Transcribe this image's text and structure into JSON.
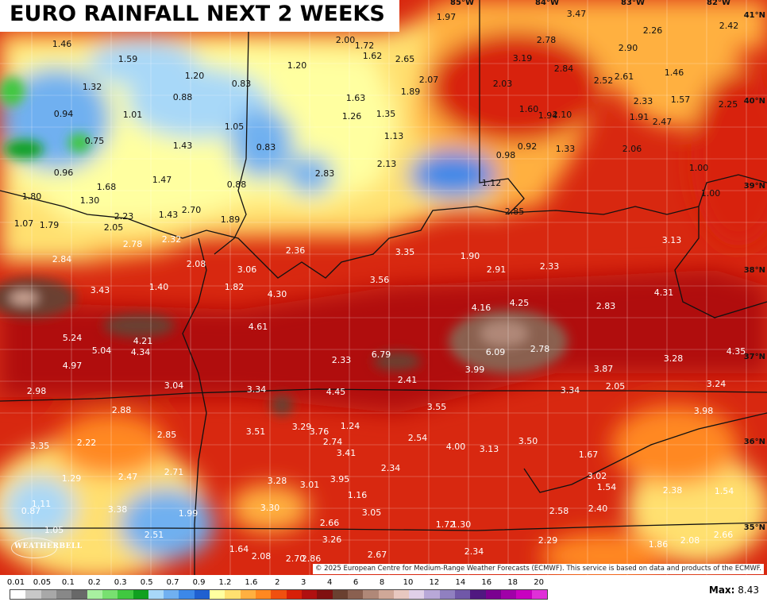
{
  "title": "EURO RAINFALL NEXT 2 WEEKS",
  "credit": "© 2025 European Centre for Medium-Range Weather Forecasts (ECMWF). This service is based on data and products of the ECMWF.",
  "logo_text": "WEATHERBELL",
  "max_label": "Max:",
  "max_value": "8.43",
  "lat_labels": [
    "41°N",
    "40°N",
    "39°N",
    "38°N",
    "37°N",
    "36°N",
    "35°N"
  ],
  "lon_labels": [
    "85°W",
    "84°W",
    "83°W",
    "82°W"
  ],
  "legend": {
    "labels": [
      "0.01",
      "0.05",
      "0.1",
      "0.2",
      "0.3",
      "0.5",
      "0.7",
      "0.9",
      "1.2",
      "1.6",
      "2",
      "3",
      "4",
      "6",
      "8",
      "10",
      "12",
      "14",
      "16",
      "18",
      "20"
    ],
    "colors": [
      "#ffffff",
      "#c8c8c8",
      "#a8a8a8",
      "#888888",
      "#686868",
      "#a8f0a0",
      "#78e070",
      "#40c840",
      "#10a020",
      "#a8d8f8",
      "#70b0f0",
      "#3c88e8",
      "#2060d0",
      "#ffffa0",
      "#ffe070",
      "#ffb040",
      "#ff8820",
      "#f05010",
      "#d82008",
      "#b01010",
      "#801010",
      "#6a4030",
      "#8a6050",
      "#b08878",
      "#d0a898",
      "#e8c8c0",
      "#e0d0e8",
      "#b8a8d8",
      "#9080c0",
      "#7058a8",
      "#501880",
      "#7a0090",
      "#a000a8",
      "#c800c0",
      "#e030d8"
    ]
  },
  "rain_values": [
    "1.97",
    "3.47",
    "2.26",
    "2.42",
    "1.46",
    "2.00",
    "1.72",
    "1.62",
    "2.65",
    "2.78",
    "2.90",
    "1.59",
    "1.20",
    "3.19",
    "2.84",
    "1.32",
    "1.20",
    "0.83",
    "2.07",
    "2.03",
    "2.52",
    "2.61",
    "1.46",
    "0.88",
    "1.89",
    "1.63",
    "2.33",
    "1.57",
    "2.25",
    "0.94",
    "1.01",
    "1.26",
    "1.35",
    "1.60",
    "1.94",
    "2.10",
    "1.91",
    "2.47",
    "0.75",
    "1.05",
    "1.13",
    "1.43",
    "0.83",
    "0.92",
    "1.33",
    "2.06",
    "0.98",
    "0.96",
    "1.47",
    "2.83",
    "2.13",
    "1.00",
    "1.68",
    "0.88",
    "1.12",
    "1.80",
    "1.30",
    "2.85",
    "1.00",
    "1.07",
    "1.79",
    "2.23",
    "1.43",
    "2.70",
    "1.89",
    "2.05",
    "2.78",
    "2.32",
    "3.13",
    "2.36",
    "3.35",
    "1.90",
    "2.84",
    "2.08",
    "2.91",
    "2.33",
    "3.06",
    "3.56",
    "3.43",
    "1.40",
    "1.82",
    "4.30",
    "4.31",
    "4.16",
    "4.25",
    "2.83",
    "4.61",
    "5.24",
    "4.21",
    "5.04",
    "4.34",
    "6.79",
    "6.09",
    "2.78",
    "4.35",
    "2.33",
    "3.28",
    "4.97",
    "3.99",
    "3.87",
    "2.41",
    "3.04",
    "3.34",
    "4.45",
    "3.34",
    "2.05",
    "3.24",
    "2.98",
    "2.88",
    "3.55",
    "3.98",
    "3.29",
    "1.24",
    "2.85",
    "3.51",
    "3.76",
    "2.74",
    "2.54",
    "2.22",
    "3.35",
    "4.00",
    "3.13",
    "3.50",
    "3.41",
    "1.67",
    "2.71",
    "2.34",
    "1.29",
    "2.47",
    "3.28",
    "3.01",
    "3.95",
    "3.02",
    "1.54",
    "2.38",
    "1.54",
    "1.11",
    "3.38",
    "1.16",
    "0.87",
    "1.99",
    "3.30",
    "3.05",
    "2.58",
    "2.40",
    "2.66",
    "3.26",
    "1.30",
    "1.72",
    "1.05",
    "2.66",
    "2.51",
    "2.67",
    "2.29",
    "1.86",
    "2.08",
    "1.64",
    "2.08",
    "2.70",
    "2.86",
    "2.34"
  ]
}
